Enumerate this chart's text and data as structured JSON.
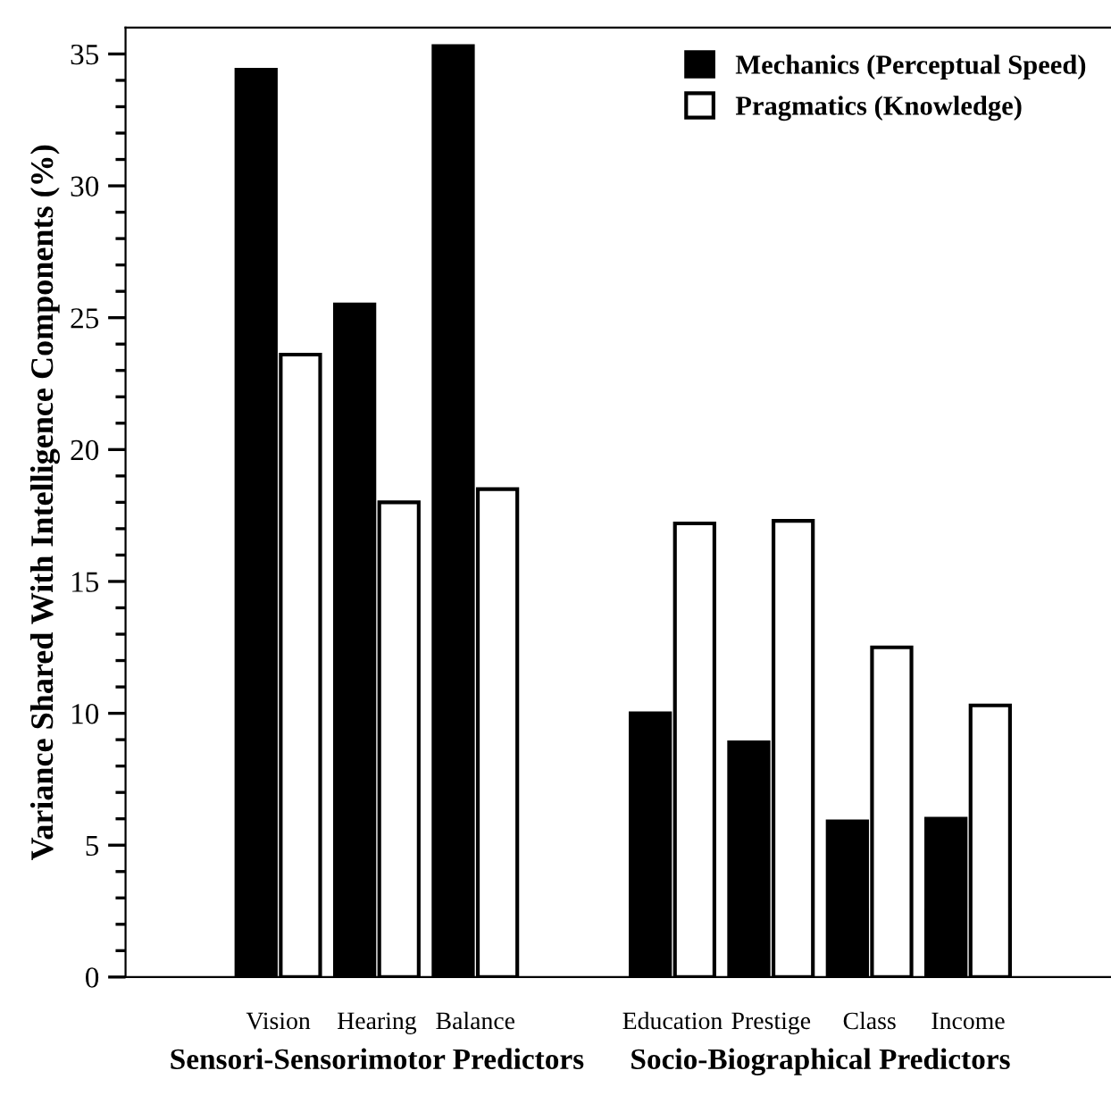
{
  "chart_data": {
    "type": "bar",
    "ylabel": "Variance Shared With Intelligence Components (%)",
    "categories": [
      "Vision",
      "Hearing",
      "Balance",
      null,
      "Education",
      "Prestige",
      "Class",
      "Income"
    ],
    "series": [
      {
        "name": "Mechanics (Perceptual Speed)",
        "color": "#000000",
        "values": [
          34.4,
          25.5,
          35.3,
          null,
          10.0,
          8.9,
          5.9,
          6.0
        ]
      },
      {
        "name": "Pragmatics (Knowledge)",
        "color": "#ffffff",
        "values": [
          23.6,
          18.0,
          18.5,
          null,
          17.2,
          17.3,
          12.5,
          10.3
        ]
      }
    ],
    "ylim": [
      0,
      36
    ],
    "yticks": [
      0,
      5,
      10,
      15,
      20,
      25,
      30,
      35
    ],
    "annotations": [
      "Sensori-Sensorimotor Predictors",
      "Socio-Biographical Predictors"
    ],
    "legend": "top right",
    "grid": false
  }
}
